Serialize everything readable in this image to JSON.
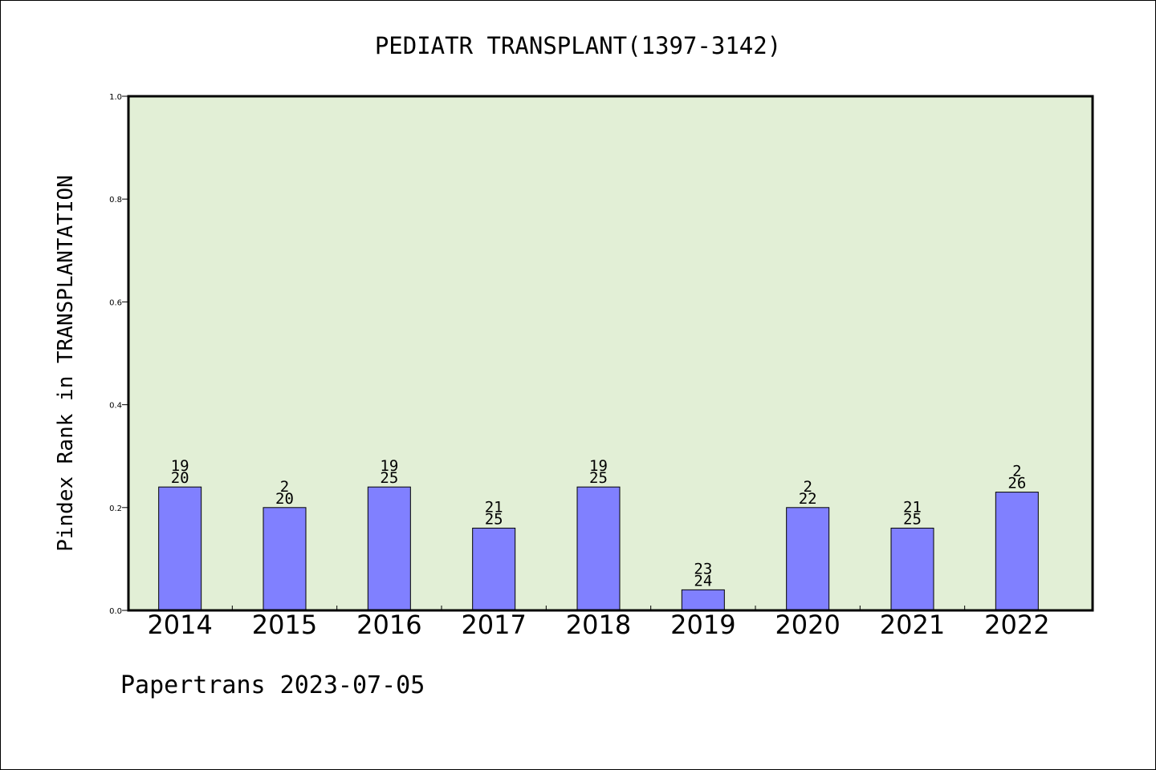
{
  "chart_data": {
    "type": "bar",
    "title": "PEDIATR TRANSPLANT(1397-3142)",
    "xlabel": "",
    "ylabel": "Pindex Rank in TRANSPLANTATION",
    "categories": [
      "2014",
      "2015",
      "2016",
      "2017",
      "2018",
      "2019",
      "2020",
      "2021",
      "2022"
    ],
    "values": [
      0.24,
      0.2,
      0.24,
      0.16,
      0.24,
      0.04,
      0.2,
      0.16,
      0.23
    ],
    "annotations": [
      [
        "19",
        "20"
      ],
      [
        "2",
        "20"
      ],
      [
        "19",
        "25"
      ],
      [
        "21",
        "25"
      ],
      [
        "19",
        "25"
      ],
      [
        "23",
        "24"
      ],
      [
        "2",
        "22"
      ],
      [
        "21",
        "25"
      ],
      [
        "2",
        "26"
      ]
    ],
    "ylim": [
      0,
      1.0
    ],
    "yticks": [
      "0.0",
      "0.2",
      "0.4",
      "0.6",
      "0.8",
      "1.0"
    ],
    "grid": false,
    "legend": "none",
    "colors": {
      "bar": "#8080ff",
      "plot_bg": "#e2efd6",
      "axis": "#000000"
    }
  },
  "footer": "Papertrans 2023-07-05"
}
